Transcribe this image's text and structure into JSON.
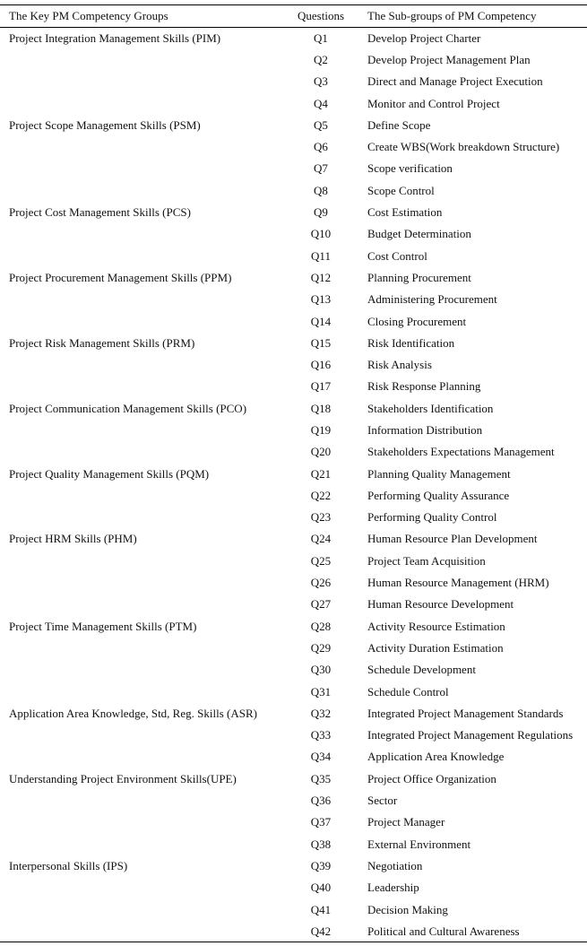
{
  "table": {
    "headers": [
      "The Key PM Competency Groups",
      "Questions",
      "The Sub-groups of PM Competency"
    ],
    "groups": [
      {
        "name": "Project Integration Management Skills (PIM)",
        "items": [
          [
            "Q1",
            "Develop Project Charter"
          ],
          [
            "Q2",
            "Develop Project Management Plan"
          ],
          [
            "Q3",
            "Direct and Manage Project Execution"
          ],
          [
            "Q4",
            "Monitor and Control Project"
          ]
        ]
      },
      {
        "name": "Project Scope Management Skills (PSM)",
        "items": [
          [
            "Q5",
            "Define Scope"
          ],
          [
            "Q6",
            "Create WBS(Work breakdown Structure)"
          ],
          [
            "Q7",
            "Scope verification"
          ],
          [
            "Q8",
            "Scope Control"
          ]
        ]
      },
      {
        "name": "Project Cost Management Skills (PCS)",
        "items": [
          [
            "Q9",
            "Cost Estimation"
          ],
          [
            "Q10",
            "Budget Determination"
          ],
          [
            "Q11",
            "Cost Control"
          ]
        ]
      },
      {
        "name": "Project Procurement Management Skills (PPM)",
        "items": [
          [
            "Q12",
            "Planning Procurement"
          ],
          [
            "Q13",
            "Administering Procurement"
          ],
          [
            "Q14",
            "Closing Procurement"
          ]
        ]
      },
      {
        "name": "Project Risk Management Skills (PRM)",
        "items": [
          [
            "Q15",
            "Risk Identification"
          ],
          [
            "Q16",
            "Risk Analysis"
          ],
          [
            "Q17",
            "Risk Response  Planning"
          ]
        ]
      },
      {
        "name": "Project Communication Management Skills (PCO)",
        "items": [
          [
            "Q18",
            "Stakeholders Identification"
          ],
          [
            "Q19",
            "Information Distribution"
          ],
          [
            "Q20",
            "Stakeholders Expectations Management"
          ]
        ]
      },
      {
        "name": "Project Quality Management Skills (PQM)",
        "items": [
          [
            "Q21",
            "Planning Quality Management"
          ],
          [
            "Q22",
            "Performing Quality Assurance"
          ],
          [
            "Q23",
            "Performing Quality Control"
          ]
        ]
      },
      {
        "name": "Project HRM Skills (PHM)",
        "items": [
          [
            "Q24",
            "Human Resource Plan Development"
          ],
          [
            "Q25",
            "Project Team Acquisition"
          ],
          [
            "Q26",
            "Human Resource Management (HRM)"
          ],
          [
            "Q27",
            "Human Resource Development"
          ]
        ]
      },
      {
        "name": "Project Time Management Skills (PTM)",
        "items": [
          [
            "Q28",
            "Activity Resource Estimation"
          ],
          [
            "Q29",
            "Activity Duration Estimation"
          ],
          [
            "Q30",
            "Schedule Development"
          ],
          [
            "Q31",
            "Schedule Control"
          ]
        ]
      },
      {
        "name": "Application Area Knowledge, Std, Reg. Skills (ASR)",
        "items": [
          [
            "Q32",
            "Integrated Project Management Standards"
          ],
          [
            "Q33",
            "Integrated Project Management Regulations"
          ],
          [
            "Q34",
            "Application Area Knowledge"
          ]
        ]
      },
      {
        "name": "Understanding Project Environment Skills(UPE)",
        "items": [
          [
            "Q35",
            "Project Office Organization"
          ],
          [
            "Q36",
            "Sector"
          ],
          [
            "Q37",
            "Project Manager"
          ],
          [
            "Q38",
            "External Environment"
          ]
        ]
      },
      {
        "name": "Interpersonal Skills (IPS)",
        "items": [
          [
            "Q39",
            "Negotiation"
          ],
          [
            "Q40",
            "Leadership"
          ],
          [
            "Q41",
            "Decision Making"
          ],
          [
            "Q42",
            "Political and Cultural Awareness"
          ]
        ]
      }
    ]
  }
}
